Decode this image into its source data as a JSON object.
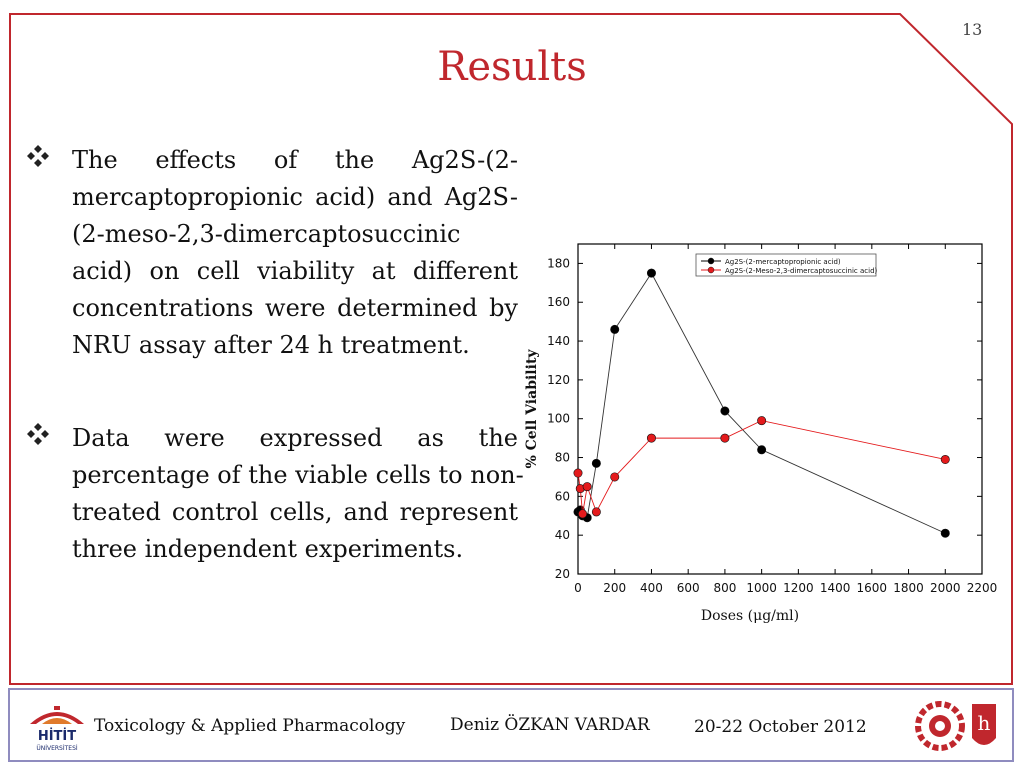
{
  "page_number": "13",
  "title": "Results",
  "bullets": [
    {
      "lines": [
        "The effects of the Ag2S-(2-",
        "mercaptopropionic acid) and Ag2S-",
        "(2-meso-2,3-dimercaptosuccinic",
        "acid) on cell viability at different",
        "concentrations were determined by",
        "NRU assay after 24 h treatment."
      ]
    },
    {
      "lines": [
        "Data were expressed as the",
        "percentage of the viable cells to non-",
        "treated control cells, and represent",
        "three independent experiments."
      ]
    }
  ],
  "footer": {
    "department": "Toxicology & Applied Pharmacology",
    "author": "Deniz ÖZKAN VARDAR",
    "date": "20-22 October 2012",
    "logo_text_top": "HİTİT",
    "logo_text_bottom": "ÜNİVERSİTESİ"
  },
  "colors": {
    "frame": "#c0272d",
    "title": "#c0272d",
    "footer_border": "#8f8cbf",
    "series_1": "#000000",
    "series_2": "#e41a1c"
  },
  "chart_data": {
    "type": "line",
    "xlabel": "Doses (μg/ml)",
    "ylabel": "% Cell Viability",
    "xlim": [
      0,
      2200
    ],
    "ylim": [
      20,
      190
    ],
    "xticks": [
      0,
      200,
      400,
      600,
      800,
      1000,
      1200,
      1400,
      1600,
      1800,
      2000,
      2200
    ],
    "yticks": [
      20,
      40,
      60,
      80,
      100,
      120,
      140,
      160,
      180
    ],
    "legend_position": "top-right",
    "grid": false,
    "series": [
      {
        "name": "Ag2S-(2-mercaptopropionic acid)",
        "color": "#000000",
        "x": [
          0,
          12.5,
          25,
          50,
          100,
          200,
          400,
          800,
          1000,
          2000
        ],
        "y": [
          52,
          53,
          50,
          49,
          77,
          146,
          175,
          104,
          84,
          41
        ]
      },
      {
        "name": "Ag2S-(2-Meso-2,3-dimercaptosuccinic acid)",
        "color": "#e41a1c",
        "x": [
          0,
          12.5,
          25,
          50,
          100,
          200,
          400,
          800,
          1000,
          2000
        ],
        "y": [
          72,
          64,
          51,
          65,
          52,
          70,
          90,
          90,
          99,
          79
        ]
      }
    ]
  }
}
